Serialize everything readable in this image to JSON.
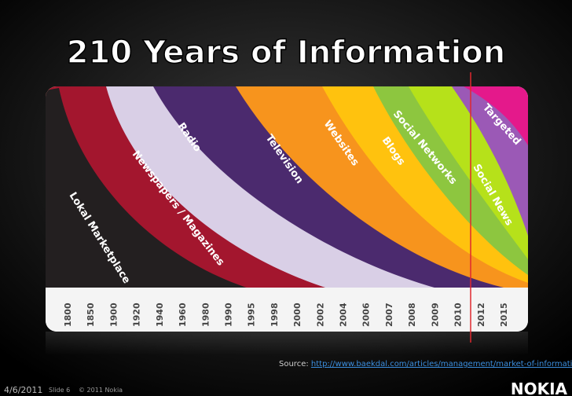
{
  "title": "210 Years of Information",
  "streams": [
    "Lokal Marketplace",
    "Newspapers / Magazines",
    "Radio",
    "Television",
    "Websites",
    "Blogs",
    "Social Networks",
    "Social News",
    "Targeted"
  ],
  "years": [
    "1800",
    "1850",
    "1900",
    "1920",
    "1940",
    "1960",
    "1980",
    "1990",
    "1995",
    "1998",
    "2000",
    "2002",
    "2004",
    "2006",
    "2007",
    "2008",
    "2009",
    "2010",
    "2012",
    "2015"
  ],
  "source": {
    "prefix": "Source:",
    "url": "http://www.baekdal.com/articles/management/market-of-information/"
  },
  "footer": {
    "date": "4/6/2011",
    "slide": "Slide 6",
    "copyright": "© 2011 Nokia",
    "logo": "NOKIA"
  }
}
